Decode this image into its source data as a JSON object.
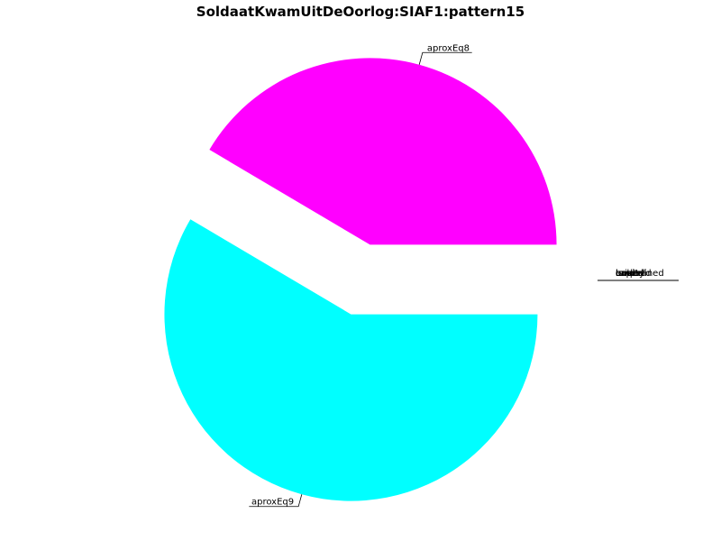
{
  "chart_data": {
    "type": "pie",
    "title": "SoldaatKwamUitDeOorlog:SIAF1:pattern15",
    "slices": [
      {
        "label": "aproxEq8",
        "value": 41.5,
        "color": "#ff00ff"
      },
      {
        "label": "aproxEq9",
        "value": 58.5,
        "color": "#00ffff"
      },
      {
        "label": "bold",
        "value": 0,
        "color": "#cccccc"
      },
      {
        "label": "capital",
        "value": 0,
        "color": "#cccccc"
      },
      {
        "label": "empty",
        "value": 0,
        "color": "#cccccc"
      },
      {
        "label": "lowered",
        "value": 0,
        "color": "#cccccc"
      },
      {
        "label": "raised",
        "value": 0,
        "color": "#cccccc"
      },
      {
        "label": "underlined",
        "value": 0,
        "color": "#cccccc"
      }
    ],
    "legend": "none",
    "exploded": true
  }
}
